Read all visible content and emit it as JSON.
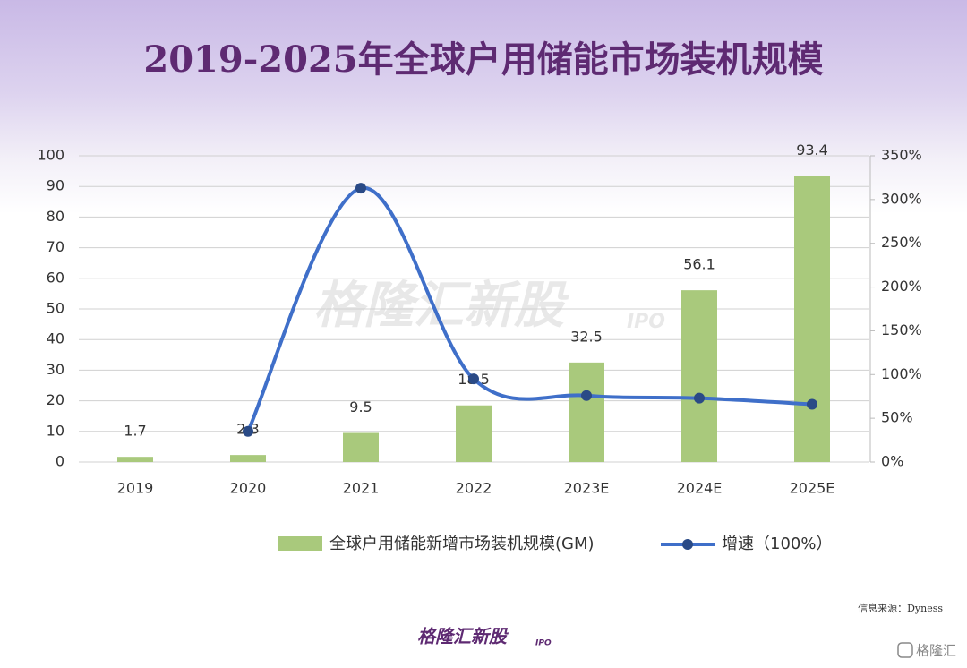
{
  "chart_data": {
    "type": "bar_line",
    "title": "2019-2025年全球户用储能市场装机规模",
    "categories": [
      "2019",
      "2020",
      "2021",
      "2022",
      "2023E",
      "2024E",
      "2025E"
    ],
    "series": [
      {
        "name": "全球户用储能新增市场装机规模(GM)",
        "color": "#a9c97c",
        "type": "bar",
        "values": [
          1.7,
          2.3,
          9.5,
          18.5,
          32.5,
          56.1,
          93.4
        ]
      },
      {
        "name": "增速（100%）",
        "color": "#3f6fc9",
        "marker_color": "#2a4a86",
        "type": "line",
        "axis": "y2",
        "values": [
          null,
          35,
          313,
          95,
          76,
          73,
          66
        ]
      }
    ],
    "ylim": [
      0,
      100
    ],
    "yticks": [
      0,
      10,
      20,
      30,
      40,
      50,
      60,
      70,
      80,
      90,
      100
    ],
    "y2lim": [
      0,
      350
    ],
    "y2ticks": [
      {
        "value": 0,
        "label": "0%"
      },
      {
        "value": 50,
        "label": "50%"
      },
      {
        "value": 100,
        "label": "100%"
      },
      {
        "value": 150,
        "label": "150%"
      },
      {
        "value": 200,
        "label": "200%"
      },
      {
        "value": 250,
        "label": "250%"
      },
      {
        "value": 300,
        "label": "300%"
      },
      {
        "value": 350,
        "label": "350%"
      }
    ],
    "grid": true,
    "legend": "bottom",
    "source": "信息来源：Dyness",
    "watermark": "格隆汇新股",
    "watermark_sub": "IPO",
    "footer_logo": "格隆汇新股",
    "footer_logo_sub": "IPO",
    "corner_logo": "格隆汇"
  }
}
